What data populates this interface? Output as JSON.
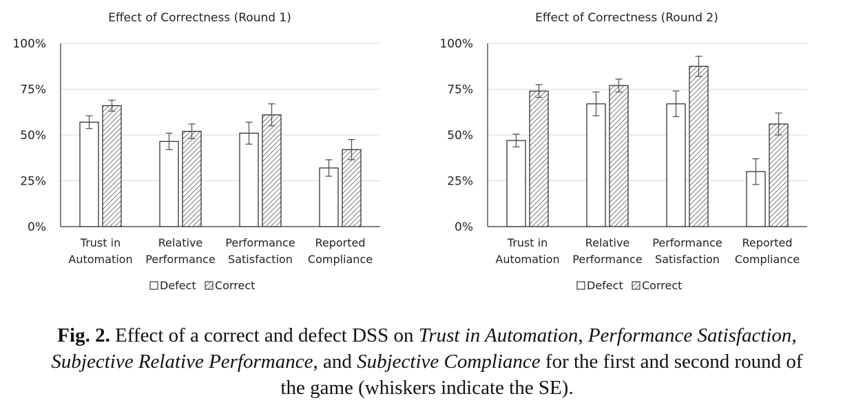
{
  "chart_data": [
    {
      "type": "bar",
      "title": "Effect of Correctness  (Round 1)",
      "categories": [
        [
          "Trust in",
          "Automation"
        ],
        [
          "Relative",
          "Performance"
        ],
        [
          "Performance",
          "Satisfaction"
        ],
        [
          "Reported",
          "Compliance"
        ]
      ],
      "ylim": [
        0,
        1
      ],
      "yticks": [
        "0%",
        "25%",
        "50%",
        "75%",
        "100%"
      ],
      "grid": true,
      "legend": "bottom",
      "error_bars": "SE",
      "series": [
        {
          "name": "Defect",
          "pattern": "plain",
          "values": [
            0.57,
            0.465,
            0.51,
            0.32
          ],
          "errors": [
            0.035,
            0.045,
            0.06,
            0.045
          ]
        },
        {
          "name": "Correct",
          "pattern": "hatched",
          "values": [
            0.66,
            0.52,
            0.61,
            0.42
          ],
          "errors": [
            0.03,
            0.04,
            0.06,
            0.055
          ]
        }
      ]
    },
    {
      "type": "bar",
      "title": "Effect of Correctness  (Round 2)",
      "categories": [
        [
          "Trust in",
          "Automation"
        ],
        [
          "Relative",
          "Performance"
        ],
        [
          "Performance",
          "Satisfaction"
        ],
        [
          "Reported",
          "Compliance"
        ]
      ],
      "ylim": [
        0,
        1
      ],
      "yticks": [
        "0%",
        "25%",
        "50%",
        "75%",
        "100%"
      ],
      "grid": true,
      "legend": "bottom",
      "error_bars": "SE",
      "series": [
        {
          "name": "Defect",
          "pattern": "plain",
          "values": [
            0.47,
            0.67,
            0.67,
            0.3
          ],
          "errors": [
            0.035,
            0.065,
            0.07,
            0.07
          ]
        },
        {
          "name": "Correct",
          "pattern": "hatched",
          "values": [
            0.74,
            0.77,
            0.875,
            0.56
          ],
          "errors": [
            0.035,
            0.035,
            0.055,
            0.06
          ]
        }
      ]
    }
  ],
  "caption": {
    "label": "Fig. 2.",
    "parts": [
      {
        "t": " Effect of a correct and defect DSS on ",
        "i": false
      },
      {
        "t": "Trust in Automation",
        "i": true
      },
      {
        "t": ", ",
        "i": false
      },
      {
        "t": "Performance Satisfaction",
        "i": true
      },
      {
        "t": ", ",
        "i": false
      },
      {
        "t": "Subjective Relative Performance",
        "i": true
      },
      {
        "t": ", and ",
        "i": false
      },
      {
        "t": "Subjective Compliance",
        "i": true
      },
      {
        "t": " for the first and second round of the game (whiskers indicate the SE).",
        "i": false
      }
    ]
  }
}
